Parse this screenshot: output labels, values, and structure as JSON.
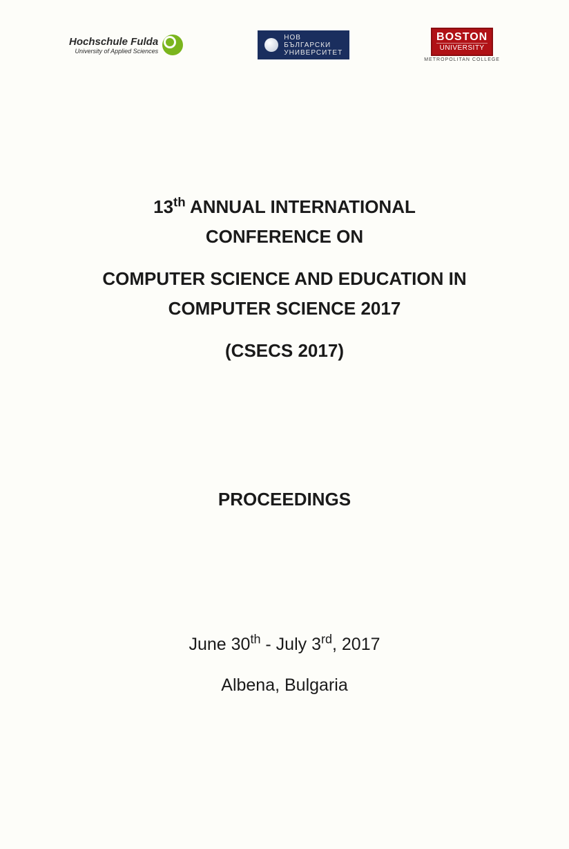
{
  "logos": {
    "fulda": {
      "main": "Hochschule Fulda",
      "sub": "University of Applied Sciences",
      "circle_color": "#7ab51d"
    },
    "nbu": {
      "line1": "НОВ",
      "line2": "БЪЛГАРСКИ",
      "line3": "УНИВЕРСИТЕТ",
      "bg_color": "#1a2e5e",
      "text_color": "#e8e8e8"
    },
    "boston": {
      "main": "BOSTON",
      "uni": "UNIVERSITY",
      "sub": "METROPOLITAN COLLEGE",
      "bg_color": "#b01116"
    }
  },
  "title": {
    "line1_prefix": "13",
    "line1_sup": "th",
    "line1_rest": " ANNUAL INTERNATIONAL",
    "line2": "CONFERENCE ON",
    "line3": "COMPUTER SCIENCE AND EDUCATION IN",
    "line4": "COMPUTER SCIENCE 2017",
    "line5": "(CSECS 2017)"
  },
  "proceedings": "PROCEEDINGS",
  "dates": {
    "prefix": "June 30",
    "sup1": "th",
    "mid": " - July 3",
    "sup2": "rd",
    "suffix": ", 2017"
  },
  "location": "Albena, Bulgaria",
  "styling": {
    "page_bg": "#fdfdf9",
    "text_color": "#1a1a1a",
    "title_fontsize": 26,
    "body_fontsize": 25,
    "font_family": "Arial"
  }
}
